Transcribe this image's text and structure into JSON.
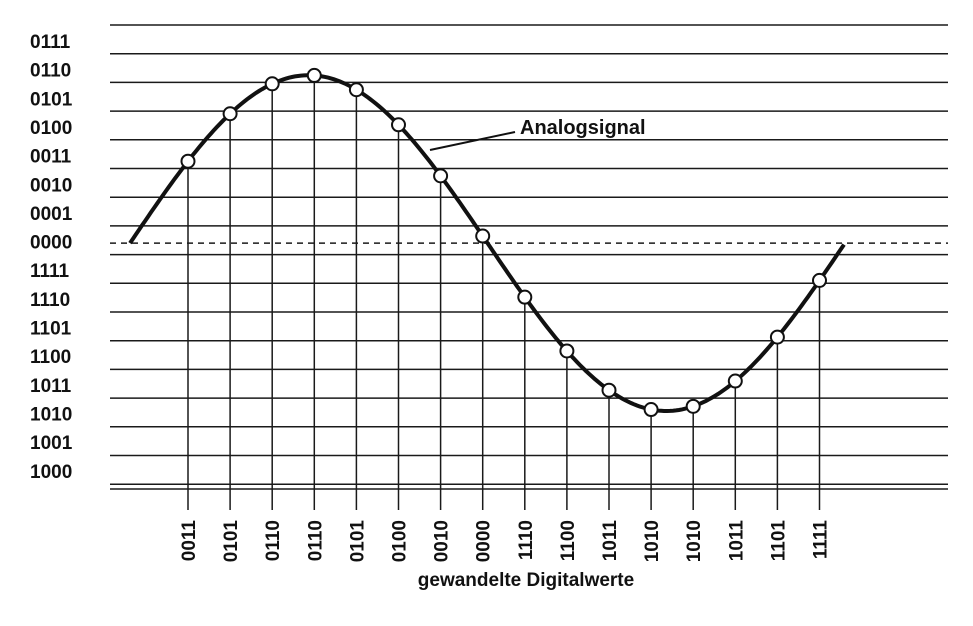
{
  "chart_data": {
    "type": "line",
    "annotation": "Analogsignal",
    "xlabel": "gewandelte Digitalwerte",
    "ylabel": "",
    "y_tick_labels": [
      "0111",
      "0110",
      "0101",
      "0100",
      "0011",
      "0010",
      "0001",
      "0000",
      "1111",
      "1110",
      "1101",
      "1100",
      "1011",
      "1010",
      "1001",
      "1000"
    ],
    "sample_codes": [
      "0011",
      "0101",
      "0110",
      "0110",
      "0101",
      "0100",
      "0010",
      "0000",
      "1110",
      "1100",
      "1011",
      "1010",
      "1010",
      "1011",
      "1101",
      "1111"
    ],
    "sample_values": [
      3.0,
      4.8,
      5.6,
      5.8,
      5.3,
      4.1,
      2.2,
      0.1,
      -1.9,
      -3.8,
      -5.2,
      -5.9,
      -5.9,
      -5.0,
      -3.4,
      -1.5
    ],
    "zero_line": "0000",
    "colors": {
      "curve": "#111111",
      "grid": "#1a1a1a",
      "marker_fill": "#ffffff"
    }
  }
}
